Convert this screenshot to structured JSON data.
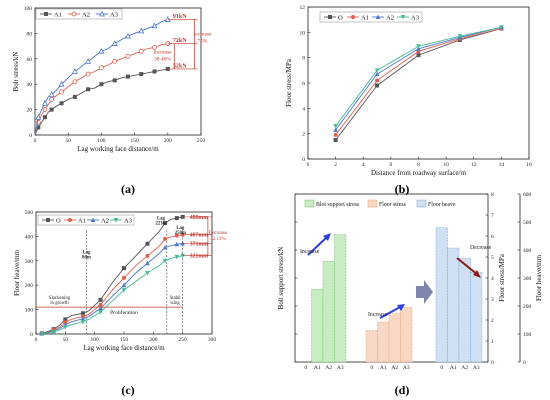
{
  "panel_labels": [
    "(a)",
    "(b)",
    "(c)",
    "(d)"
  ],
  "colors": {
    "O": "#555555",
    "A1": "#e0604f",
    "A2": "#4a77c9",
    "A3": "#43b89a",
    "annot": "#c0392b",
    "arrow_blue": "#2a3fd8",
    "arrow_red": "#8b1a1a",
    "bar_green": "#c8ecc2",
    "bar_orange": "#f8d8c4",
    "bar_blue": "#cfe0f2",
    "big_arrow": "#7e86ad"
  },
  "chart_data": [
    {
      "type": "line",
      "panel": "a",
      "xlabel": "Lag working face distance/m",
      "ylabel": "Bolt stress/kN",
      "xlim": [
        0,
        250
      ],
      "ylim": [
        0,
        100
      ],
      "xticks": [
        "0",
        "50",
        "100",
        "150",
        "200",
        "250"
      ],
      "yticks": [
        "0",
        "20",
        "40",
        "60",
        "80",
        "100"
      ],
      "legend": "top-left",
      "series": [
        {
          "name": "A1",
          "x": [
            0,
            5,
            10,
            15,
            20,
            25,
            30,
            40,
            50,
            60,
            70,
            80,
            90,
            100,
            110,
            120,
            130,
            140,
            150,
            160,
            170,
            180,
            190,
            200
          ],
          "y": [
            0,
            6,
            10,
            14,
            18,
            20,
            22,
            25,
            28,
            30,
            33,
            36,
            37,
            40,
            42,
            43,
            45,
            46,
            47,
            48,
            49,
            50,
            51,
            52
          ]
        },
        {
          "name": "A2",
          "x": [
            0,
            5,
            10,
            15,
            20,
            25,
            30,
            40,
            50,
            60,
            70,
            80,
            90,
            100,
            110,
            120,
            130,
            140,
            150,
            160,
            170,
            180,
            190,
            200
          ],
          "y": [
            0,
            10,
            16,
            20,
            24,
            28,
            30,
            34,
            38,
            42,
            45,
            48,
            50,
            53,
            55,
            58,
            60,
            62,
            64,
            66,
            68,
            69,
            71,
            72
          ]
        },
        {
          "name": "A3",
          "x": [
            0,
            5,
            10,
            15,
            20,
            25,
            30,
            40,
            50,
            60,
            70,
            80,
            90,
            100,
            110,
            120,
            130,
            140,
            150,
            160,
            170,
            180,
            190,
            200
          ],
          "y": [
            0,
            14,
            20,
            25,
            30,
            32,
            34,
            40,
            45,
            50,
            54,
            58,
            62,
            66,
            68,
            72,
            75,
            78,
            80,
            82,
            84,
            86,
            89,
            91
          ]
        }
      ],
      "annotations": [
        "91kN",
        "72kN",
        "52kN",
        "Increase\n38.46%",
        "Increase\n75%"
      ]
    },
    {
      "type": "line",
      "panel": "b",
      "xlabel": "Distance from roadway surface/m",
      "ylabel": "Floor stress/MPa",
      "xlim": [
        0,
        16
      ],
      "ylim": [
        0,
        12
      ],
      "xticks": [
        "0",
        "2",
        "4",
        "6",
        "8",
        "10",
        "12",
        "14",
        "16"
      ],
      "yticks": [
        "0",
        "2",
        "4",
        "6",
        "8",
        "10",
        "12"
      ],
      "legend": "top-left",
      "x": [
        2,
        5,
        8,
        11,
        14
      ],
      "series": [
        {
          "name": "O",
          "values": [
            1.5,
            5.8,
            8.2,
            9.4,
            10.3
          ]
        },
        {
          "name": "A1",
          "values": [
            1.9,
            6.2,
            8.5,
            9.5,
            10.3
          ]
        },
        {
          "name": "A2",
          "values": [
            2.3,
            6.7,
            8.7,
            9.6,
            10.4
          ]
        },
        {
          "name": "A3",
          "values": [
            2.6,
            7.0,
            8.9,
            9.7,
            10.4
          ]
        }
      ]
    },
    {
      "type": "line",
      "panel": "c",
      "xlabel": "Lag working face distance/m",
      "ylabel": "Floor heave/mm",
      "xlim": [
        0,
        300
      ],
      "ylim": [
        0,
        500
      ],
      "xticks": [
        "0",
        "50",
        "100",
        "150",
        "200",
        "250",
        "300"
      ],
      "yticks": [
        "0",
        "100",
        "200",
        "300",
        "400",
        "500"
      ],
      "legend": "top-left",
      "x": [
        10,
        20,
        30,
        40,
        50,
        60,
        80,
        90,
        110,
        130,
        150,
        170,
        190,
        210,
        220,
        230,
        240,
        250
      ],
      "series": [
        {
          "name": "O",
          "values": [
            3,
            10,
            20,
            35,
            60,
            75,
            85,
            95,
            140,
            210,
            270,
            320,
            370,
            420,
            455,
            470,
            475,
            480
          ]
        },
        {
          "name": "A1",
          "values": [
            2,
            8,
            16,
            28,
            48,
            60,
            72,
            80,
            120,
            180,
            230,
            280,
            320,
            360,
            390,
            398,
            403,
            407
          ]
        },
        {
          "name": "A2",
          "values": [
            2,
            6,
            12,
            22,
            38,
            50,
            62,
            72,
            105,
            155,
            200,
            250,
            290,
            330,
            355,
            362,
            368,
            371
          ]
        },
        {
          "name": "A3",
          "values": [
            1,
            4,
            8,
            16,
            28,
            38,
            50,
            60,
            90,
            135,
            180,
            215,
            250,
            280,
            300,
            310,
            316,
            321
          ]
        }
      ],
      "vlines": [
        86,
        223,
        250
      ],
      "annotations": [
        "480mm",
        "407mm",
        "371mm",
        "321mm",
        "Decrease\n33.13%",
        "Lag\n86m",
        "Lag\n223m",
        "Lag\n250m",
        "Slackening\nin growth",
        "Proliferation",
        "Stabil\nizing"
      ]
    },
    {
      "type": "bar",
      "panel": "d",
      "categories": [
        "0",
        "A1",
        "A2",
        "A3"
      ],
      "legend": "top",
      "legend_entries": [
        "Blot support stress",
        "Floor stress",
        "Floor heave"
      ],
      "ylabel_left": "Bolt support stress/kN",
      "ylabel_right_1": "Floor stress/MPa",
      "ylabel_right_2": "Floor heave/mm",
      "groups": [
        {
          "name": "Blot support stress",
          "axis": "left",
          "ylim": [
            0,
            120
          ],
          "yticks": [
            "0",
            "20",
            "40",
            "60",
            "80",
            "100",
            "120"
          ],
          "values": [
            0,
            52,
            72,
            91
          ]
        },
        {
          "name": "Floor stress",
          "axis": "right1",
          "ylim": [
            0,
            8
          ],
          "yticks": [
            "0",
            "1",
            "2",
            "3",
            "4",
            "5",
            "6",
            "7",
            "8"
          ],
          "values": [
            1.5,
            1.9,
            2.3,
            2.6
          ]
        },
        {
          "name": "Floor heave",
          "axis": "right2",
          "ylim": [
            0,
            600
          ],
          "yticks": [
            "0",
            "100",
            "200",
            "300",
            "400",
            "500",
            "600"
          ],
          "values": [
            480,
            407,
            371,
            321
          ]
        }
      ],
      "annotations": [
        "Increase",
        "Increase",
        "Decrease"
      ]
    }
  ]
}
